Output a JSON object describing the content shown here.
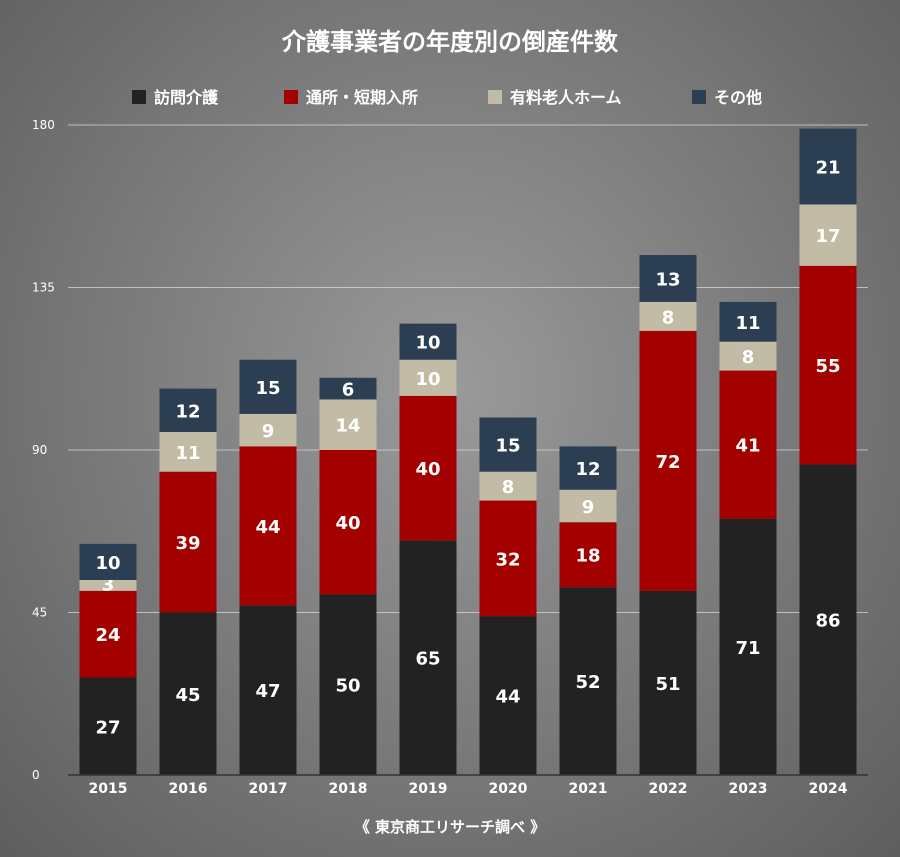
{
  "chart_data": {
    "type": "bar",
    "stacked": true,
    "title": "介護事業者の年度別の倒産件数",
    "source": "《 東京商工リサーチ調べ 》",
    "categories": [
      "2015",
      "2016",
      "2017",
      "2018",
      "2019",
      "2020",
      "2021",
      "2022",
      "2023",
      "2024"
    ],
    "ylim": [
      0,
      180
    ],
    "yticks": [
      0,
      45,
      90,
      135,
      180
    ],
    "grid": true,
    "legend_position": "top",
    "series": [
      {
        "name": "訪問介護",
        "color": "#222222",
        "values": [
          27,
          45,
          47,
          50,
          65,
          44,
          52,
          51,
          71,
          86
        ]
      },
      {
        "name": "通所・短期入所",
        "color": "#a30000",
        "values": [
          24,
          39,
          44,
          40,
          40,
          32,
          18,
          72,
          41,
          55
        ]
      },
      {
        "name": "有料老人ホーム",
        "color": "#c2bca6",
        "values": [
          3,
          11,
          9,
          14,
          10,
          8,
          9,
          8,
          8,
          17
        ]
      },
      {
        "name": "その他",
        "color": "#2c3e52",
        "values": [
          10,
          12,
          15,
          6,
          10,
          15,
          12,
          13,
          11,
          21
        ]
      }
    ]
  }
}
